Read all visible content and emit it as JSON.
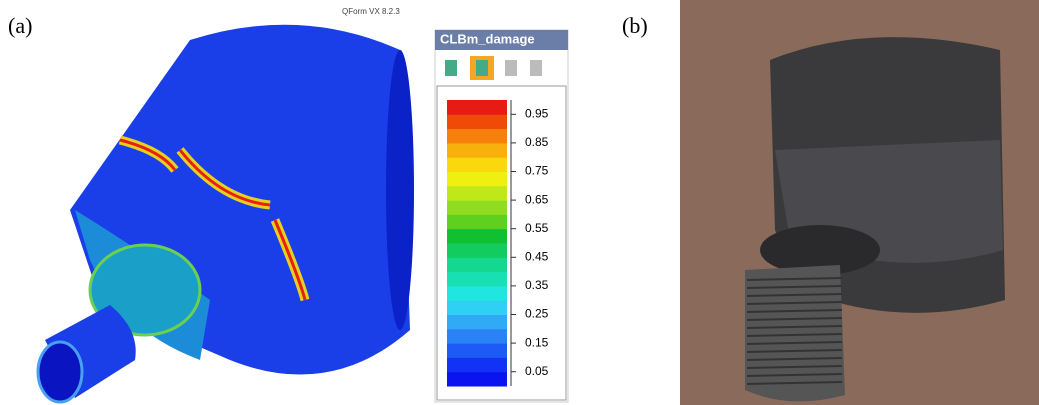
{
  "panel_a": {
    "label": "(a)",
    "software": "QForm VX 8.2.3",
    "legend": {
      "title": "CLBm_damage",
      "range": [
        0,
        1
      ],
      "ticks": [
        0.95,
        0.85,
        0.75,
        0.65,
        0.55,
        0.45,
        0.35,
        0.25,
        0.15,
        0.05
      ],
      "colors": [
        "#0a14f0",
        "#1232f5",
        "#1e5af5",
        "#2a82f5",
        "#30aaf5",
        "#30d0f5",
        "#20e6e0",
        "#18e0b4",
        "#14d890",
        "#12cc60",
        "#10c030",
        "#60d020",
        "#90dc20",
        "#c0e818",
        "#f0f010",
        "#fad80e",
        "#f8b00c",
        "#f5800a",
        "#f04a08",
        "#e81a14"
      ]
    }
  },
  "panel_b": {
    "label": "(b)"
  }
}
